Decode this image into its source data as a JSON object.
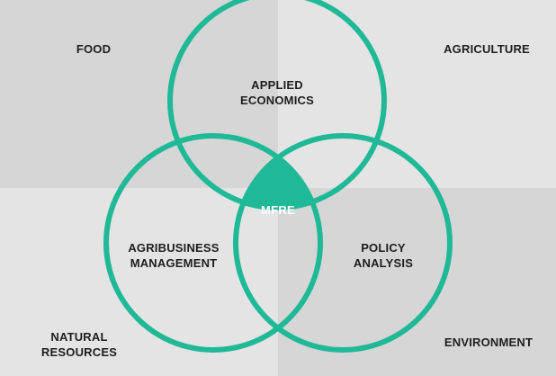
{
  "colors": {
    "ring": "#1fb997",
    "fill_center": "#1fb997",
    "bg_light": "#e4e4e4",
    "bg_dark": "#d6d6d6",
    "text": "#1e1e1e"
  },
  "corners": {
    "top_left": "FOOD",
    "top_right": "AGRICULTURE",
    "bottom_left_line1": "NATURAL",
    "bottom_left_line2": "RESOURCES",
    "bottom_right": "ENVIRONMENT"
  },
  "circles": {
    "top_line1": "APPLIED",
    "top_line2": "ECONOMICS",
    "left_line1": "AGRIBUSINESS",
    "left_line2": "MANAGEMENT",
    "right_line1": "POLICY",
    "right_line2": "ANALYSIS"
  },
  "center": "MFRE"
}
